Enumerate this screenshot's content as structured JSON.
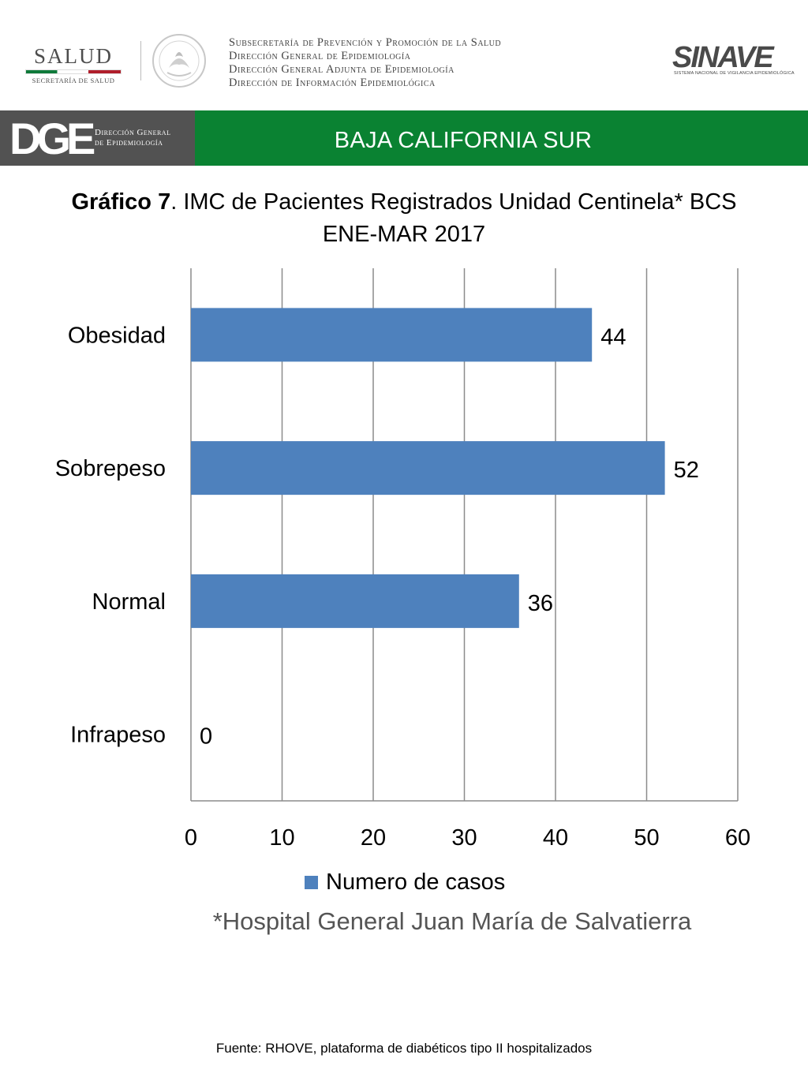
{
  "header": {
    "salud_logo_text": "SALUD",
    "salud_logo_sub": "SECRETARÍA DE SALUD",
    "directorates": [
      "Subsecretaría de Prevención y Promoción de la Salud",
      "Dirección General de Epidemiología",
      "Dirección General Adjunta de Epidemiología",
      "Dirección de Información Epidemiológica"
    ],
    "sinave_logo_text": "SINAVE",
    "sinave_logo_sub": "SISTEMA NACIONAL DE VIGILANCIA EPIDEMIOLÓGICA",
    "seal_icon": "mexican-coat-of-arms-seal"
  },
  "band": {
    "dge_letters": "DGE",
    "dge_line1": "Dirección General",
    "dge_line2": "de Epidemiología",
    "state": "BAJA CALIFORNIA SUR",
    "colors": {
      "gray": "#525252",
      "green": "#0a8232"
    }
  },
  "chart_title": {
    "bold_part": "Gráfico 7",
    "rest_line1": ". IMC de Pacientes Registrados Unidad Centinela* BCS",
    "line2": "ENE-MAR 2017"
  },
  "chart_data": {
    "type": "bar",
    "orientation": "horizontal",
    "categories": [
      "Obesidad",
      "Sobrepeso",
      "Normal",
      "Infrapeso"
    ],
    "series": [
      {
        "name": "Numero de casos",
        "values": [
          44,
          52,
          36,
          0
        ],
        "color": "#4e81bd"
      }
    ],
    "data_labels": [
      "44",
      "52",
      "36",
      "0"
    ],
    "xlim": [
      0,
      60
    ],
    "xticks": [
      "0",
      "10",
      "20",
      "30",
      "40",
      "50",
      "60"
    ],
    "grid": "vertical",
    "legend_position": "bottom"
  },
  "footnote": "*Hospital General Juan María de Salvatierra",
  "source": "Fuente: RHOVE, plataforma de diabéticos tipo II hospitalizados"
}
